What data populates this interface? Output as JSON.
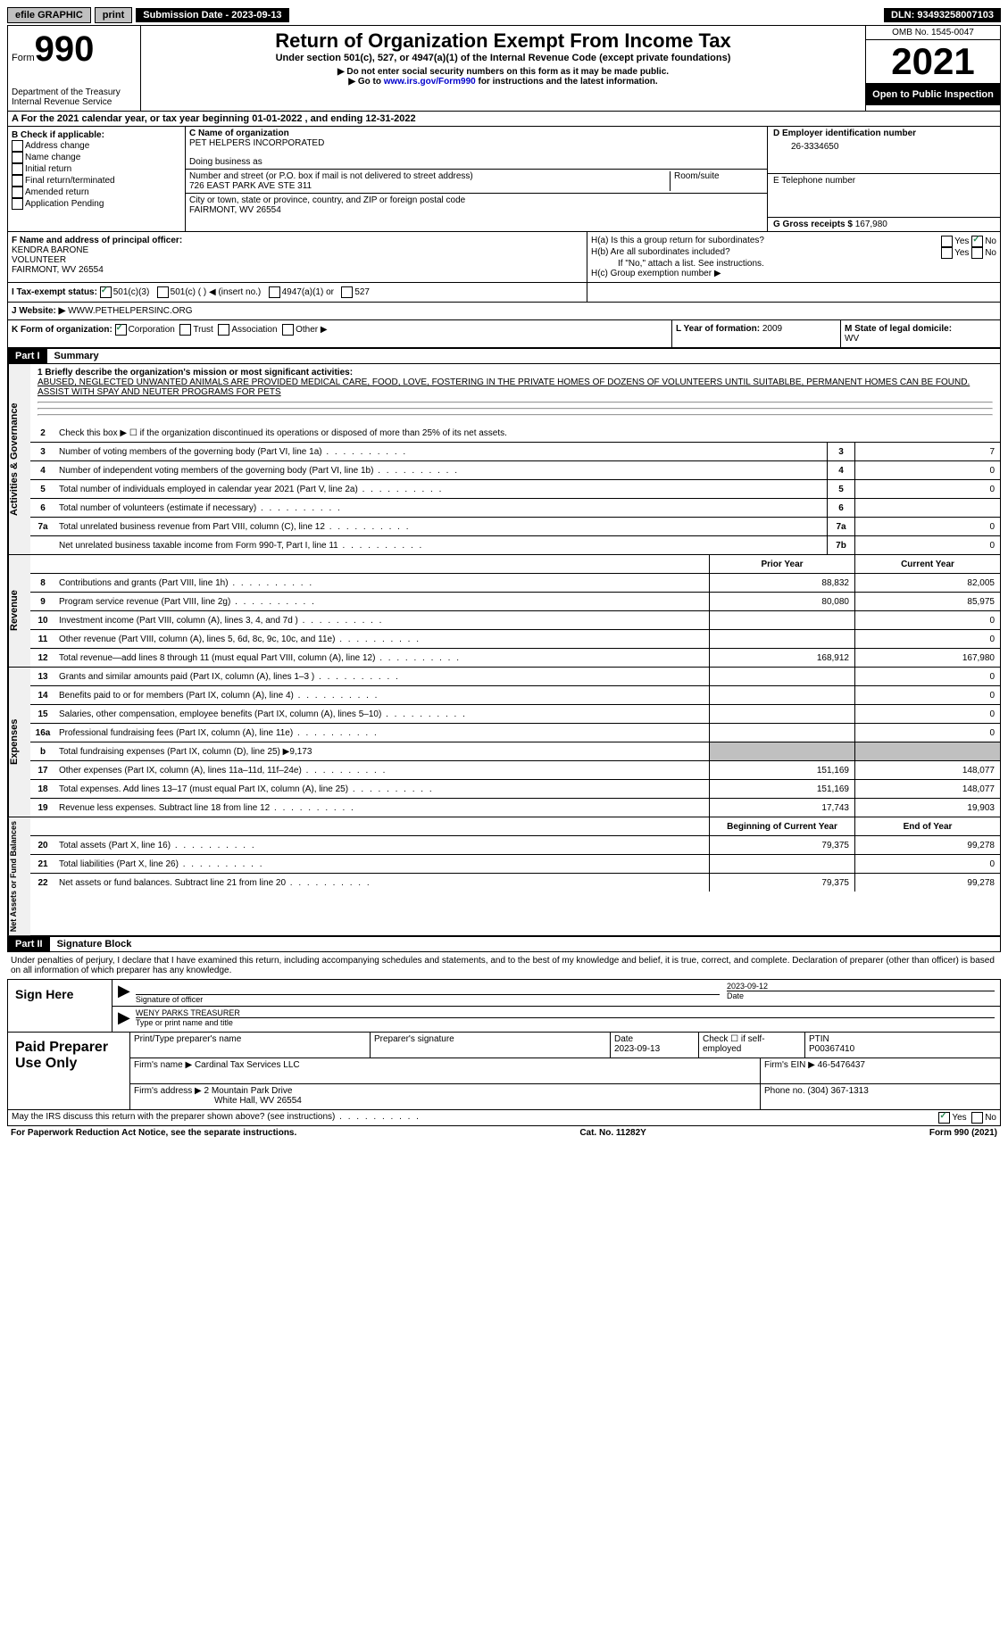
{
  "top": {
    "efile": "efile GRAPHIC",
    "print": "print",
    "sub_label": "Submission Date - ",
    "sub_date": "2023-09-13",
    "dln_label": "DLN: ",
    "dln": "93493258007103"
  },
  "header": {
    "form_label": "Form",
    "form_num": "990",
    "dept": "Department of the Treasury",
    "irs": "Internal Revenue Service",
    "title": "Return of Organization Exempt From Income Tax",
    "subtitle": "Under section 501(c), 527, or 4947(a)(1) of the Internal Revenue Code (except private foundations)",
    "note1": "▶ Do not enter social security numbers on this form as it may be made public.",
    "note2_pre": "▶ Go to ",
    "note2_link": "www.irs.gov/Form990",
    "note2_post": " for instructions and the latest information.",
    "omb": "OMB No. 1545-0047",
    "year": "2021",
    "open": "Open to Public Inspection"
  },
  "rowA": {
    "text_pre": "A For the 2021 calendar year, or tax year beginning ",
    "begin": "01-01-2022",
    "mid": " , and ending ",
    "end": "12-31-2022"
  },
  "sectionB": {
    "label": "B Check if applicable:",
    "opts": [
      "Address change",
      "Name change",
      "Initial return",
      "Final return/terminated",
      "Amended return",
      "Application Pending"
    ]
  },
  "sectionC": {
    "name_label": "C Name of organization",
    "name": "PET HELPERS INCORPORATED",
    "dba_label": "Doing business as",
    "addr_label": "Number and street (or P.O. box if mail is not delivered to street address)",
    "room_label": "Room/suite",
    "addr": "726 EAST PARK AVE STE 311",
    "city_label": "City or town, state or province, country, and ZIP or foreign postal code",
    "city": "FAIRMONT, WV  26554"
  },
  "sectionD": {
    "ein_label": "D Employer identification number",
    "ein": "26-3334650",
    "phone_label": "E Telephone number",
    "gross_label": "G Gross receipts $ ",
    "gross": "167,980"
  },
  "sectionF": {
    "label": "F Name and address of principal officer:",
    "name": "KENDRA BARONE",
    "title": "VOLUNTEER",
    "city": "FAIRMONT, WV  26554"
  },
  "sectionH": {
    "h_a": "H(a)  Is this a group return for subordinates?",
    "h_b": "H(b)  Are all subordinates included?",
    "h_b_note": "If \"No,\" attach a list. See instructions.",
    "h_c": "H(c)  Group exemption number ▶",
    "yes": "Yes",
    "no": "No"
  },
  "sectionI": {
    "label": "I  Tax-exempt status:",
    "opts": [
      "501(c)(3)",
      "501(c) (  ) ◀ (insert no.)",
      "4947(a)(1) or",
      "527"
    ]
  },
  "sectionJ": {
    "label": "J  Website: ▶",
    "value": "WWW.PETHELPERSINC.ORG"
  },
  "sectionK": {
    "label": "K Form of organization:",
    "opts": [
      "Corporation",
      "Trust",
      "Association",
      "Other ▶"
    ]
  },
  "sectionL": {
    "label": "L Year of formation: ",
    "value": "2009"
  },
  "sectionM": {
    "label": "M State of legal domicile:",
    "value": "WV"
  },
  "part1": {
    "header": "Part I",
    "title": "Summary",
    "mission_label": "1  Briefly describe the organization's mission or most significant activities:",
    "mission": "ABUSED, NEGLECTED UNWANTED ANIMALS ARE PROVIDED MEDICAL CARE, FOOD, LOVE, FOSTERING IN THE PRIVATE HOMES OF DOZENS OF VOLUNTEERS UNTIL SUITABLBE, PERMANENT HOMES CAN BE FOUND. ASSIST WITH SPAY AND NEUTER PROGRAMS FOR PETS"
  },
  "sections": {
    "governance": {
      "label": "Activities & Governance",
      "lines": [
        {
          "n": "2",
          "d": "Check this box ▶ ☐ if the organization discontinued its operations or disposed of more than 25% of its net assets."
        },
        {
          "n": "3",
          "d": "Number of voting members of the governing body (Part VI, line 1a)",
          "c": "3",
          "v": "7"
        },
        {
          "n": "4",
          "d": "Number of independent voting members of the governing body (Part VI, line 1b)",
          "c": "4",
          "v": "0"
        },
        {
          "n": "5",
          "d": "Total number of individuals employed in calendar year 2021 (Part V, line 2a)",
          "c": "5",
          "v": "0"
        },
        {
          "n": "6",
          "d": "Total number of volunteers (estimate if necessary)",
          "c": "6",
          "v": ""
        },
        {
          "n": "7a",
          "d": "Total unrelated business revenue from Part VIII, column (C), line 12",
          "c": "7a",
          "v": "0"
        },
        {
          "n": "",
          "d": "Net unrelated business taxable income from Form 990-T, Part I, line 11",
          "c": "7b",
          "v": "0"
        }
      ]
    },
    "revenue": {
      "label": "Revenue",
      "header_prior": "Prior Year",
      "header_current": "Current Year",
      "lines": [
        {
          "n": "8",
          "d": "Contributions and grants (Part VIII, line 1h)",
          "p": "88,832",
          "c": "82,005"
        },
        {
          "n": "9",
          "d": "Program service revenue (Part VIII, line 2g)",
          "p": "80,080",
          "c": "85,975"
        },
        {
          "n": "10",
          "d": "Investment income (Part VIII, column (A), lines 3, 4, and 7d )",
          "p": "",
          "c": "0"
        },
        {
          "n": "11",
          "d": "Other revenue (Part VIII, column (A), lines 5, 6d, 8c, 9c, 10c, and 11e)",
          "p": "",
          "c": "0"
        },
        {
          "n": "12",
          "d": "Total revenue—add lines 8 through 11 (must equal Part VIII, column (A), line 12)",
          "p": "168,912",
          "c": "167,980"
        }
      ]
    },
    "expenses": {
      "label": "Expenses",
      "lines": [
        {
          "n": "13",
          "d": "Grants and similar amounts paid (Part IX, column (A), lines 1–3 )",
          "p": "",
          "c": "0"
        },
        {
          "n": "14",
          "d": "Benefits paid to or for members (Part IX, column (A), line 4)",
          "p": "",
          "c": "0"
        },
        {
          "n": "15",
          "d": "Salaries, other compensation, employee benefits (Part IX, column (A), lines 5–10)",
          "p": "",
          "c": "0"
        },
        {
          "n": "16a",
          "d": "Professional fundraising fees (Part IX, column (A), line 11e)",
          "p": "",
          "c": "0"
        },
        {
          "n": "b",
          "d": "Total fundraising expenses (Part IX, column (D), line 25) ▶9,173",
          "gray": true
        },
        {
          "n": "17",
          "d": "Other expenses (Part IX, column (A), lines 11a–11d, 11f–24e)",
          "p": "151,169",
          "c": "148,077"
        },
        {
          "n": "18",
          "d": "Total expenses. Add lines 13–17 (must equal Part IX, column (A), line 25)",
          "p": "151,169",
          "c": "148,077"
        },
        {
          "n": "19",
          "d": "Revenue less expenses. Subtract line 18 from line 12",
          "p": "17,743",
          "c": "19,903"
        }
      ]
    },
    "netassets": {
      "label": "Net Assets or Fund Balances",
      "header_begin": "Beginning of Current Year",
      "header_end": "End of Year",
      "lines": [
        {
          "n": "20",
          "d": "Total assets (Part X, line 16)",
          "p": "79,375",
          "c": "99,278"
        },
        {
          "n": "21",
          "d": "Total liabilities (Part X, line 26)",
          "p": "",
          "c": "0"
        },
        {
          "n": "22",
          "d": "Net assets or fund balances. Subtract line 21 from line 20",
          "p": "79,375",
          "c": "99,278"
        }
      ]
    }
  },
  "part2": {
    "header": "Part II",
    "title": "Signature Block",
    "declare": "Under penalties of perjury, I declare that I have examined this return, including accompanying schedules and statements, and to the best of my knowledge and belief, it is true, correct, and complete. Declaration of preparer (other than officer) is based on all information of which preparer has any knowledge."
  },
  "sign": {
    "label": "Sign Here",
    "sig_label": "Signature of officer",
    "date_label": "Date",
    "date": "2023-09-12",
    "name": "WENY PARKS TREASURER",
    "name_label": "Type or print name and title"
  },
  "preparer": {
    "label": "Paid Preparer Use Only",
    "print_label": "Print/Type preparer's name",
    "sig_label": "Preparer's signature",
    "date_label": "Date",
    "date": "2023-09-13",
    "check_label": "Check ☐ if self-employed",
    "ptin_label": "PTIN",
    "ptin": "P00367410",
    "firm_label": "Firm's name   ▶ ",
    "firm": "Cardinal Tax Services LLC",
    "ein_label": "Firm's EIN ▶ ",
    "ein": "46-5476437",
    "addr_label": "Firm's address ▶ ",
    "addr1": "2 Mountain Park Drive",
    "addr2": "White Hall, WV  26554",
    "phone_label": "Phone no. ",
    "phone": "(304) 367-1313"
  },
  "footer": {
    "discuss": "May the IRS discuss this return with the preparer shown above? (see instructions)",
    "yes": "Yes",
    "no": "No",
    "paperwork": "For Paperwork Reduction Act Notice, see the separate instructions.",
    "cat": "Cat. No. 11282Y",
    "form": "Form 990 (2021)"
  }
}
